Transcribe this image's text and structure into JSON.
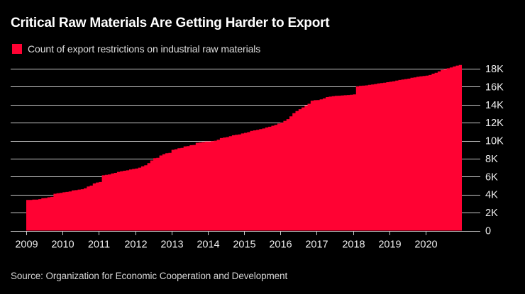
{
  "header": {
    "title": "Critical Raw Materials Are Getting Harder to Export"
  },
  "legend": {
    "label": "Count of export restrictions on industrial raw materials",
    "swatch_color": "#ff0233"
  },
  "source": {
    "text": "Source: Organization for Economic Cooperation and Development"
  },
  "colors": {
    "background": "#000000",
    "area": "#ff0233",
    "gridline": "#c9c9c9",
    "axis_text": "#ededed",
    "title_text": "#ffffff"
  },
  "chart_data": {
    "type": "area",
    "title": "Critical Raw Materials Are Getting Harder to Export",
    "series_name": "Count of export restrictions on industrial raw materials",
    "step": true,
    "grid": "horizontal",
    "legend_position": "top-left",
    "x_unit": "month",
    "x_start": "2009-01",
    "x_end": "2020-12",
    "x_tick_labels": [
      "2009",
      "2010",
      "2011",
      "2012",
      "2013",
      "2014",
      "2015",
      "2016",
      "2017",
      "2018",
      "2019",
      "2020"
    ],
    "y_ticks": [
      0,
      2000,
      4000,
      6000,
      8000,
      10000,
      12000,
      14000,
      16000,
      18000
    ],
    "y_tick_labels": [
      "0",
      "2K",
      "4K",
      "6K",
      "8K",
      "10K",
      "12K",
      "14K",
      "16K",
      "18K"
    ],
    "ylim": [
      0,
      18400
    ],
    "values": [
      3400,
      3400,
      3450,
      3450,
      3500,
      3600,
      3620,
      3700,
      3750,
      4100,
      4150,
      4200,
      4260,
      4300,
      4350,
      4470,
      4500,
      4560,
      4600,
      4700,
      4900,
      5000,
      5250,
      5350,
      5400,
      6150,
      6200,
      6250,
      6350,
      6420,
      6530,
      6600,
      6660,
      6700,
      6800,
      6850,
      6900,
      7000,
      7150,
      7260,
      7500,
      7800,
      8050,
      8100,
      8350,
      8500,
      8600,
      8650,
      8980,
      9050,
      9150,
      9200,
      9370,
      9400,
      9500,
      9520,
      9770,
      9800,
      9850,
      9900,
      9900,
      9950,
      10000,
      10100,
      10290,
      10350,
      10400,
      10500,
      10600,
      10650,
      10690,
      10800,
      10870,
      10950,
      11080,
      11150,
      11200,
      11290,
      11350,
      11470,
      11550,
      11660,
      11750,
      11900,
      12000,
      12200,
      12400,
      12700,
      13050,
      13300,
      13500,
      13700,
      13900,
      14100,
      14450,
      14500,
      14520,
      14600,
      14700,
      14850,
      14900,
      14950,
      14990,
      15000,
      15020,
      15050,
      15080,
      15100,
      15150,
      16050,
      16100,
      16120,
      16150,
      16200,
      16250,
      16300,
      16360,
      16400,
      16440,
      16500,
      16550,
      16600,
      16680,
      16750,
      16800,
      16850,
      16900,
      17000,
      17040,
      17100,
      17150,
      17200,
      17230,
      17300,
      17450,
      17550,
      17700,
      17860,
      17950,
      18050,
      18140,
      18250,
      18350,
      18410
    ]
  }
}
